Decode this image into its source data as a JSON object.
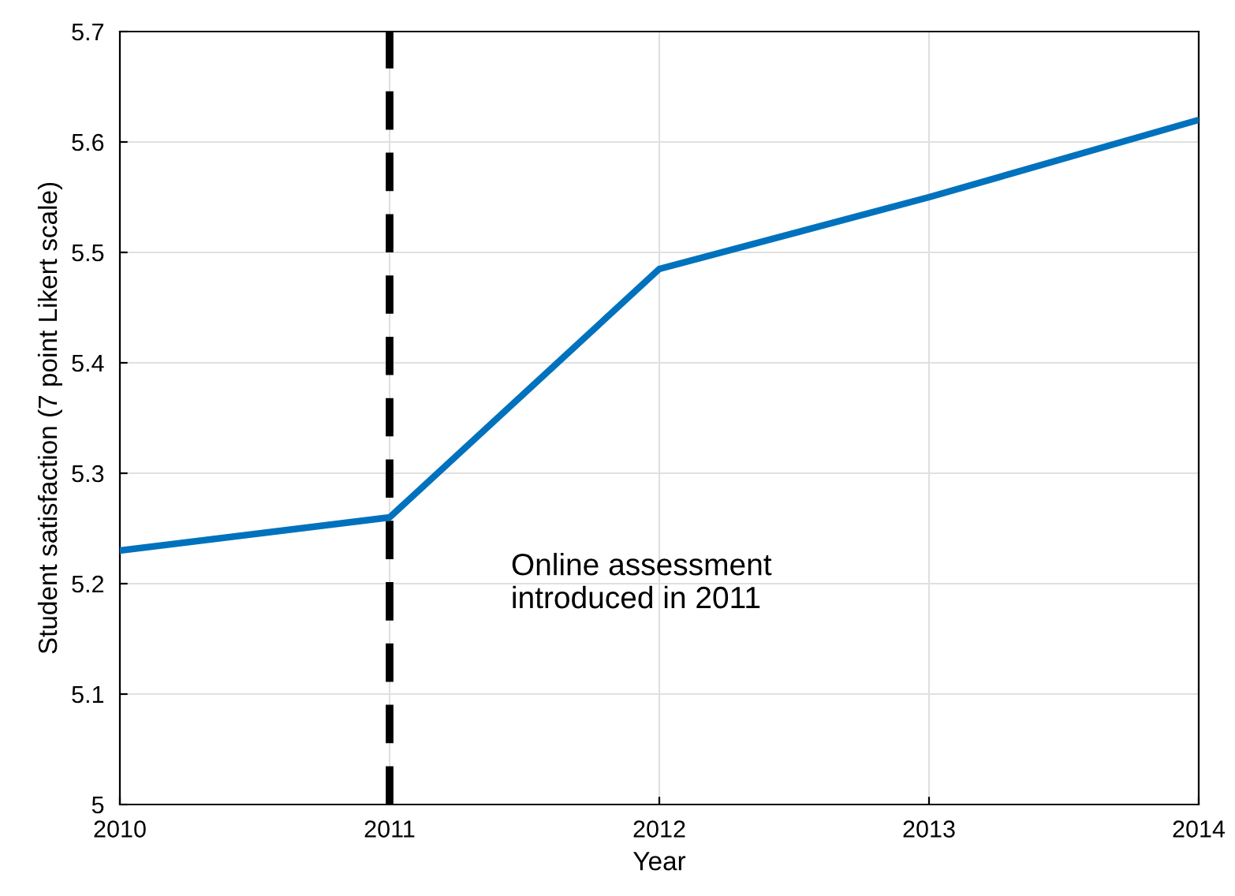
{
  "chart_data": {
    "type": "line",
    "xlabel": "Year",
    "ylabel": "Student satisfaction (7 point Likert scale)",
    "x": [
      2010,
      2011,
      2012,
      2013,
      2014
    ],
    "series": [
      {
        "color": "#0072bd",
        "values": [
          5.23,
          5.26,
          5.485,
          5.55,
          5.62
        ]
      }
    ],
    "xlim": [
      2010,
      2014
    ],
    "xticks": [
      2010,
      2011,
      2012,
      2013,
      2014
    ],
    "ylim": [
      5,
      5.7
    ],
    "yticks": [
      5,
      5.1,
      5.2,
      5.3,
      5.4,
      5.5,
      5.6,
      5.7
    ],
    "grid": true,
    "legend": false,
    "ref_lines": [
      {
        "axis": "x",
        "value": 2011,
        "color": "#000000",
        "line_style": "dashed"
      }
    ],
    "annotations": [
      "Online assessment\nintroduced in 2011"
    ]
  }
}
